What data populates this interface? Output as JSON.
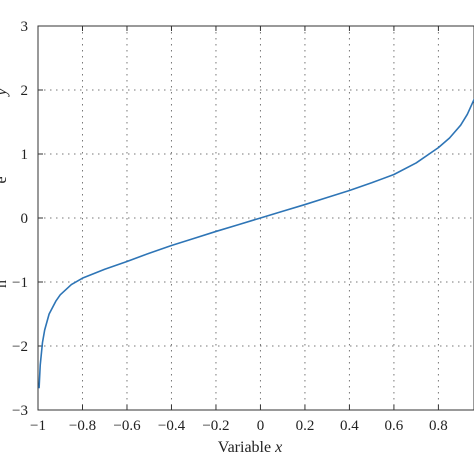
{
  "chart_data": {
    "type": "line",
    "title": "",
    "xlabel": "Variable x",
    "xlabel_main": "Variable ",
    "xlabel_var": "x",
    "ylabel": "",
    "ylabel_fragments": [
      "y",
      "e",
      "n"
    ],
    "xlim": [
      -1,
      0.96
    ],
    "ylim": [
      -3,
      3
    ],
    "xticks": [
      -1,
      -0.8,
      -0.6,
      -0.4,
      -0.2,
      0,
      0.2,
      0.4,
      0.6,
      0.8
    ],
    "xtick_labels": [
      "−1",
      "−0.8",
      "−0.6",
      "−0.4",
      "−0.2",
      "0",
      "0.2",
      "0.4",
      "0.6",
      "0.8"
    ],
    "yticks": [
      -3,
      -2,
      -1,
      0,
      1,
      2,
      3
    ],
    "ytick_labels": [
      "−3",
      "−2",
      "−1",
      "0",
      "1",
      "2",
      "3"
    ],
    "grid": true,
    "series": [
      {
        "color": "#2e75b6",
        "x": [
          -0.995,
          -0.99,
          -0.98,
          -0.97,
          -0.95,
          -0.92,
          -0.9,
          -0.85,
          -0.8,
          -0.7,
          -0.6,
          -0.5,
          -0.4,
          -0.3,
          -0.2,
          -0.1,
          0,
          0.1,
          0.2,
          0.3,
          0.4,
          0.5,
          0.6,
          0.7,
          0.8,
          0.85,
          0.9,
          0.93,
          0.96
        ],
        "y": [
          -2.65,
          -2.3,
          -1.95,
          -1.75,
          -1.5,
          -1.3,
          -1.2,
          -1.04,
          -0.94,
          -0.8,
          -0.68,
          -0.55,
          -0.43,
          -0.32,
          -0.21,
          -0.105,
          0,
          0.105,
          0.21,
          0.32,
          0.43,
          0.55,
          0.68,
          0.86,
          1.1,
          1.25,
          1.45,
          1.62,
          1.85
        ]
      }
    ]
  }
}
